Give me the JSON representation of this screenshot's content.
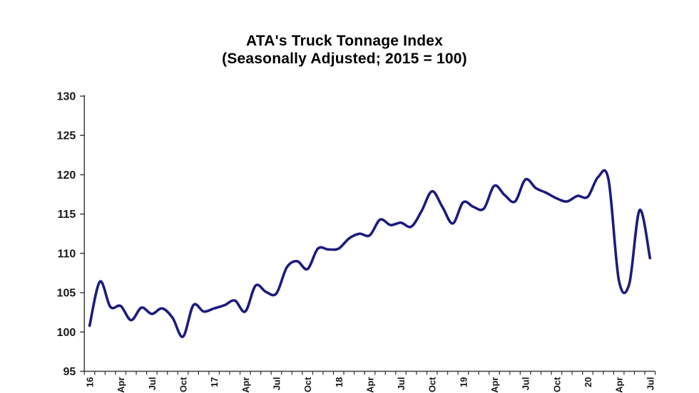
{
  "title": {
    "line1": "ATA's Truck Tonnage Index",
    "line2": "(Seasonally Adjusted; 2015 = 100)"
  },
  "chart_data": {
    "type": "line",
    "title": "ATA's Truck Tonnage Index",
    "subtitle": "(Seasonally Adjusted; 2015 = 100)",
    "series_name": "Truck Tonnage Index (seasonally adjusted, 2015 = 100)",
    "months": [
      "2016-01",
      "2016-02",
      "2016-03",
      "2016-04",
      "2016-05",
      "2016-06",
      "2016-07",
      "2016-08",
      "2016-09",
      "2016-10",
      "2016-11",
      "2016-12",
      "2017-01",
      "2017-02",
      "2017-03",
      "2017-04",
      "2017-05",
      "2017-06",
      "2017-07",
      "2017-08",
      "2017-09",
      "2017-10",
      "2017-11",
      "2017-12",
      "2018-01",
      "2018-02",
      "2018-03",
      "2018-04",
      "2018-05",
      "2018-06",
      "2018-07",
      "2018-08",
      "2018-09",
      "2018-10",
      "2018-11",
      "2018-12",
      "2019-01",
      "2019-02",
      "2019-03",
      "2019-04",
      "2019-05",
      "2019-06",
      "2019-07",
      "2019-08",
      "2019-09",
      "2019-10",
      "2019-11",
      "2019-12",
      "2020-01",
      "2020-02",
      "2020-03",
      "2020-04",
      "2020-05",
      "2020-06",
      "2020-07"
    ],
    "values": [
      100.8,
      106.4,
      103.2,
      103.3,
      101.5,
      103.1,
      102.3,
      103.0,
      101.8,
      99.4,
      103.4,
      102.6,
      103.0,
      103.4,
      104.0,
      102.6,
      105.9,
      105.1,
      104.9,
      108.2,
      109.0,
      108.0,
      110.6,
      110.5,
      110.6,
      111.9,
      112.5,
      112.3,
      114.3,
      113.6,
      113.9,
      113.4,
      115.4,
      117.9,
      115.9,
      113.8,
      116.5,
      115.9,
      115.7,
      118.6,
      117.4,
      116.6,
      119.4,
      118.3,
      117.7,
      117.0,
      116.6,
      117.3,
      117.2,
      119.7,
      119.4,
      106.6,
      106.1,
      115.5,
      109.4
    ],
    "x_tick_labels": [
      "16",
      "Apr",
      "Jul",
      "Oct",
      "17",
      "Apr",
      "Jul",
      "Oct",
      "18",
      "Apr",
      "Jul",
      "Oct",
      "19",
      "Apr",
      "Jul",
      "Oct",
      "20",
      "Apr",
      "Jul"
    ],
    "x_label_every_months": 3,
    "x_minor_tick_every_months": 1,
    "y_ticks": [
      95,
      100,
      105,
      110,
      115,
      120,
      125,
      130
    ],
    "ylim": [
      95,
      130
    ],
    "grid": false,
    "legend": "none",
    "smoothed_line": true,
    "line_color": "#1c1c7c",
    "axis_color": "#3d3d3d",
    "text_color": "#1a1a1a"
  }
}
